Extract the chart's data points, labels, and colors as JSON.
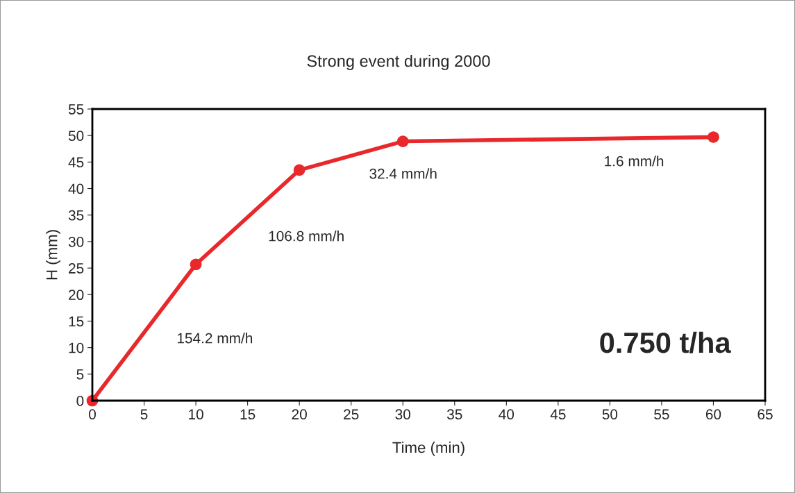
{
  "chart_data": {
    "type": "line",
    "title": "Strong event during 2000",
    "xlabel": "Time (min)",
    "ylabel": "H (mm)",
    "x": [
      0,
      10,
      20,
      30,
      60
    ],
    "series": [
      {
        "color": "#e8282b",
        "values": [
          0,
          25.7,
          43.5,
          48.9,
          49.7
        ]
      }
    ],
    "xlim": [
      0,
      65
    ],
    "xticks": [
      0,
      5,
      10,
      15,
      20,
      25,
      30,
      35,
      40,
      45,
      50,
      55,
      60,
      65
    ],
    "ylim": [
      0,
      55
    ],
    "yticks": [
      0,
      5,
      10,
      15,
      20,
      25,
      30,
      35,
      40,
      45,
      50,
      55
    ],
    "grid": false,
    "legend": false,
    "marker": "circle",
    "line_style": "solid",
    "annotations": [
      "154.2 mm/h",
      "106.8 mm/h",
      "32.4 mm/h",
      "1.6 mm/h",
      "0.750 t/ha"
    ]
  }
}
